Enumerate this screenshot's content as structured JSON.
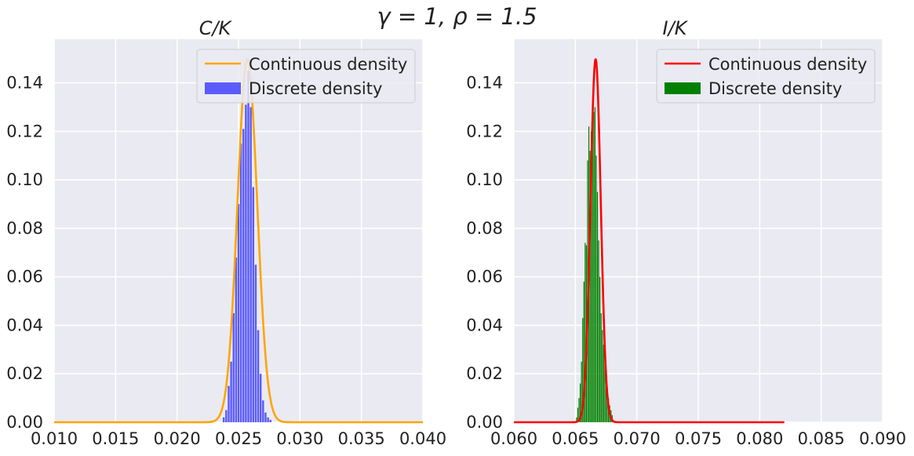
{
  "suptitle": "γ = 1, ρ = 1.5",
  "chart_data": [
    {
      "type": "line+bar",
      "title": "C/K",
      "xlim": [
        0.01,
        0.04
      ],
      "ylim": [
        0.0,
        0.158
      ],
      "xticks": [
        "0.010",
        "0.015",
        "0.020",
        "0.025",
        "0.030",
        "0.035",
        "0.040"
      ],
      "yticks": [
        "0.00",
        "0.02",
        "0.04",
        "0.06",
        "0.08",
        "0.10",
        "0.12",
        "0.14"
      ],
      "grid": true,
      "legend_position": "top-right",
      "series": [
        {
          "name": "Continuous density",
          "kind": "line",
          "color": "#FFA500",
          "mean": 0.02572,
          "sd": 0.0008,
          "peak": 0.15,
          "x_range": [
            0.01,
            0.04
          ]
        },
        {
          "name": "Discrete density",
          "kind": "bar",
          "color": "#5B5BFA",
          "x": [
            0.0238,
            0.024,
            0.0242,
            0.0244,
            0.0246,
            0.0248,
            0.025,
            0.0252,
            0.0254,
            0.0256,
            0.0258,
            0.026,
            0.0262,
            0.0264,
            0.0266,
            0.0268,
            0.027,
            0.0272,
            0.0274,
            0.0276
          ],
          "values": [
            0.002,
            0.005,
            0.015,
            0.025,
            0.045,
            0.068,
            0.09,
            0.115,
            0.121,
            0.131,
            0.145,
            0.13,
            0.097,
            0.065,
            0.038,
            0.02,
            0.009,
            0.004,
            0.002,
            0.001
          ]
        }
      ]
    },
    {
      "type": "line+bar",
      "title": "I/K",
      "xlim": [
        0.06,
        0.09
      ],
      "ylim": [
        0.0,
        0.158
      ],
      "xticks": [
        "0.060",
        "0.065",
        "0.070",
        "0.075",
        "0.080",
        "0.085",
        "0.090"
      ],
      "yticks": [
        "0.00",
        "0.02",
        "0.04",
        "0.06",
        "0.08",
        "0.10",
        "0.12",
        "0.14"
      ],
      "grid": true,
      "legend_position": "top-right",
      "series": [
        {
          "name": "Continuous density",
          "kind": "line",
          "color": "#FF0000",
          "mean": 0.06665,
          "sd": 0.00042,
          "peak": 0.15,
          "x_range": [
            0.06,
            0.082
          ]
        },
        {
          "name": "Discrete density",
          "kind": "bar",
          "color": "#008000",
          "x": [
            0.0651,
            0.0652,
            0.0653,
            0.0654,
            0.0655,
            0.0656,
            0.0657,
            0.0658,
            0.0659,
            0.066,
            0.0661,
            0.0662,
            0.0663,
            0.0664,
            0.0665,
            0.0666,
            0.0667,
            0.0668,
            0.0669,
            0.067,
            0.0671,
            0.0672,
            0.0673,
            0.0674,
            0.0675,
            0.0676,
            0.0677,
            0.0678,
            0.0679,
            0.068
          ],
          "values": [
            0.002,
            0.006,
            0.01,
            0.016,
            0.025,
            0.043,
            0.058,
            0.074,
            0.073,
            0.108,
            0.122,
            0.112,
            0.12,
            0.131,
            0.128,
            0.13,
            0.11,
            0.095,
            0.075,
            0.06,
            0.045,
            0.038,
            0.032,
            0.027,
            0.02,
            0.014,
            0.01,
            0.007,
            0.005,
            0.003
          ]
        }
      ]
    }
  ]
}
